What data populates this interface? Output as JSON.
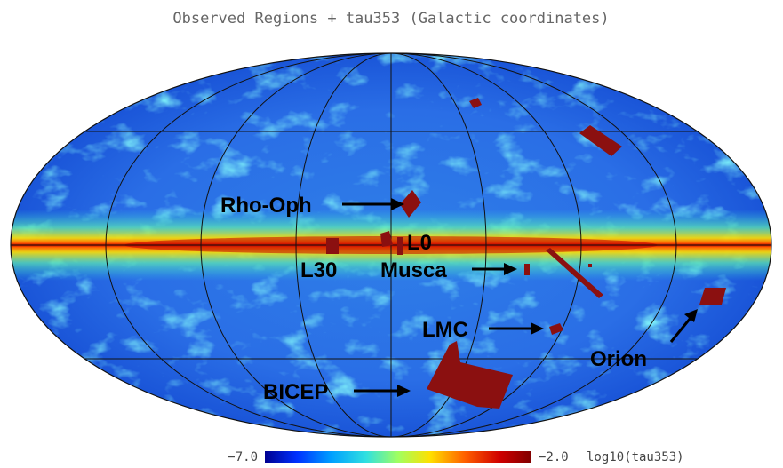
{
  "title": "Observed Regions + tau353 (Galactic coordinates)",
  "colorbar": {
    "min_label": "−7.0",
    "max_label": "−2.0",
    "unit_label": "log10(tau353)",
    "colors": [
      "#000090",
      "#0030ff",
      "#00a0ff",
      "#30e0e0",
      "#a0ff60",
      "#ffe000",
      "#ff6000",
      "#d00000",
      "#800000"
    ]
  },
  "projection": "mollweide",
  "region_color": "#8b1010",
  "labels": {
    "rho_oph": "Rho-Oph",
    "l0": "L0",
    "l30": "L30",
    "musca": "Musca",
    "lmc": "LMC",
    "orion": "Orion",
    "bicep": "BICEP"
  }
}
